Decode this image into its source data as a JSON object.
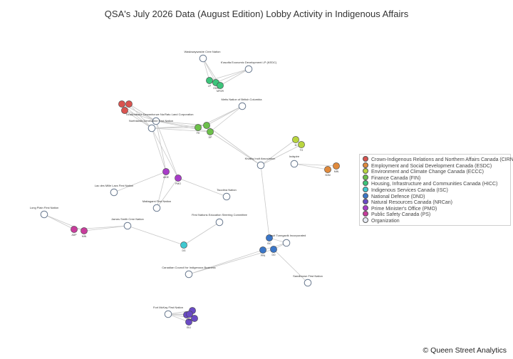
{
  "title": "QSA's July 2026 Data (August Edition) Lobby Activity in Indigenous Affairs",
  "credit": "© Queen Street Analytics",
  "legend": [
    {
      "key": "CIRNAC",
      "label": "Crown-Indigenous Relations and Northern Affairs Canada (CIRNAC)",
      "color": "#d9534f"
    },
    {
      "key": "ESDC",
      "label": "Employment and Social Development Canada (ESDC)",
      "color": "#e08a3c"
    },
    {
      "key": "ECCC",
      "label": "Environment and Climate Change Canada (ECCC)",
      "color": "#b9d53f"
    },
    {
      "key": "FIN",
      "label": "Finance Canada (FIN)",
      "color": "#6cc04a"
    },
    {
      "key": "HICC",
      "label": "Housing, Infrastructure and Communities Canada (HICC)",
      "color": "#3cc47a"
    },
    {
      "key": "ISC",
      "label": "Indigenous Services Canada (ISC)",
      "color": "#40c8d0"
    },
    {
      "key": "DND",
      "label": "National Defence (DND)",
      "color": "#3a76c8"
    },
    {
      "key": "NRCan",
      "label": "Natural Resources Canada (NRCan)",
      "color": "#6a4bc4"
    },
    {
      "key": "PMO",
      "label": "Prime Minister's Office (PMO)",
      "color": "#a83cc8"
    },
    {
      "key": "PS",
      "label": "Public Safety Canada (PS)",
      "color": "#c83c9c"
    },
    {
      "key": "Organization",
      "label": "Organization",
      "color": "#e8ecf5"
    }
  ],
  "nodes": [
    {
      "id": "o1",
      "label": "Waskwaywashe Cree Nation",
      "group": "Organization"
    },
    {
      "id": "o2",
      "label": "K'asotfa Economic Development LP (KEDC)",
      "group": "Organization"
    },
    {
      "id": "o3",
      "label": "Metis Nation of British Columbia",
      "group": "Organization"
    },
    {
      "id": "o4",
      "label": "Ta'aAbokoha Dewanha:we Na:Ratu Land Corporation",
      "group": "Organization"
    },
    {
      "id": "o5",
      "label": "Northlands Denesuline First Nation",
      "group": "Organization"
    },
    {
      "id": "o6",
      "label": "Kivalliq Inuit Association",
      "group": "Organization"
    },
    {
      "id": "o7",
      "label": "Indspire",
      "group": "Organization"
    },
    {
      "id": "o8",
      "label": "Lac des Mille Lacs First Nation",
      "group": "Organization"
    },
    {
      "id": "o9",
      "label": "Tsuutina Nation",
      "group": "Organization"
    },
    {
      "id": "o10",
      "label": "Mattagami First Nation",
      "group": "Organization"
    },
    {
      "id": "o11",
      "label": "First Nations Education Steering Committee",
      "group": "Organization"
    },
    {
      "id": "o12",
      "label": "Long Plain First Nation",
      "group": "Organization"
    },
    {
      "id": "o13",
      "label": "James Smith Cree Nation",
      "group": "Organization"
    },
    {
      "id": "o14",
      "label": "Inuit Tunngavik Incorporated",
      "group": "Organization"
    },
    {
      "id": "o15",
      "label": "Canadian Council for Indigenous Business",
      "group": "Organization"
    },
    {
      "id": "o16",
      "label": "Sandbrown First Nation",
      "group": "Organization"
    },
    {
      "id": "o17",
      "label": "Fort McKay First Nation",
      "group": "Organization"
    },
    {
      "id": "h1",
      "label": "LP",
      "group": "HICC"
    },
    {
      "id": "h2",
      "label": "EDS",
      "group": "HICC"
    },
    {
      "id": "h3",
      "label": "MFOR",
      "group": "HICC"
    },
    {
      "id": "c1",
      "label": "",
      "group": "CIRNAC"
    },
    {
      "id": "c2",
      "label": "",
      "group": "CIRNAC"
    },
    {
      "id": "c3",
      "label": "",
      "group": "CIRNAC"
    },
    {
      "id": "f1",
      "label": "FH",
      "group": "FIN"
    },
    {
      "id": "f2",
      "label": "",
      "group": "FIN"
    },
    {
      "id": "f3",
      "label": "DP",
      "group": "FIN"
    },
    {
      "id": "e1",
      "label": "M",
      "group": "ECCC"
    },
    {
      "id": "e2",
      "label": "TO",
      "group": "ECCC"
    },
    {
      "id": "s1",
      "label": "SDM",
      "group": "ESDC"
    },
    {
      "id": "s2",
      "label": "MIN",
      "group": "ESDC"
    },
    {
      "id": "p1",
      "label": "AIDE",
      "group": "PMO"
    },
    {
      "id": "p2",
      "label": "PMO",
      "group": "PMO"
    },
    {
      "id": "ps1",
      "label": "ADP",
      "group": "PS"
    },
    {
      "id": "ps2",
      "label": "MIN",
      "group": "PS"
    },
    {
      "id": "i1",
      "label": "DG",
      "group": "ISC"
    },
    {
      "id": "d1",
      "label": "ISC",
      "group": "DND"
    },
    {
      "id": "d2",
      "label": "PPA",
      "group": "DND"
    },
    {
      "id": "d3",
      "label": "DO",
      "group": "DND"
    },
    {
      "id": "n1",
      "label": "",
      "group": "NRCan"
    },
    {
      "id": "n2",
      "label": "",
      "group": "NRCan"
    },
    {
      "id": "n3",
      "label": "",
      "group": "NRCan"
    },
    {
      "id": "n4",
      "label": "EIU",
      "group": "NRCan"
    },
    {
      "id": "n5",
      "label": "PU",
      "group": "NRCan"
    }
  ],
  "edges": [
    [
      "o1",
      "h1"
    ],
    [
      "o1",
      "h2"
    ],
    [
      "o1",
      "h3"
    ],
    [
      "o2",
      "h1"
    ],
    [
      "o2",
      "h2"
    ],
    [
      "o2",
      "h3"
    ],
    [
      "o3",
      "f1"
    ],
    [
      "o3",
      "f2"
    ],
    [
      "o3",
      "f3"
    ],
    [
      "o4",
      "f1"
    ],
    [
      "o4",
      "f2"
    ],
    [
      "o4",
      "f3"
    ],
    [
      "o5",
      "f1"
    ],
    [
      "o5",
      "f2"
    ],
    [
      "o5",
      "f3"
    ],
    [
      "c1",
      "o4"
    ],
    [
      "c2",
      "o4"
    ],
    [
      "c3",
      "o4"
    ],
    [
      "c1",
      "o5"
    ],
    [
      "c2",
      "o5"
    ],
    [
      "c3",
      "o5"
    ],
    [
      "o6",
      "f2"
    ],
    [
      "o6",
      "f3"
    ],
    [
      "o6",
      "e1"
    ],
    [
      "o6",
      "e2"
    ],
    [
      "o6",
      "d1"
    ],
    [
      "o7",
      "s1"
    ],
    [
      "o7",
      "s2"
    ],
    [
      "o4",
      "p1"
    ],
    [
      "o5",
      "p1"
    ],
    [
      "o4",
      "p2"
    ],
    [
      "o5",
      "p2"
    ],
    [
      "o8",
      "p1"
    ],
    [
      "o9",
      "p2"
    ],
    [
      "o10",
      "p1"
    ],
    [
      "o10",
      "p2"
    ],
    [
      "o11",
      "i1"
    ],
    [
      "o13",
      "i1"
    ],
    [
      "o12",
      "ps1"
    ],
    [
      "o12",
      "ps2"
    ],
    [
      "o13",
      "ps1"
    ],
    [
      "o13",
      "ps2"
    ],
    [
      "o14",
      "d1"
    ],
    [
      "o14",
      "d2"
    ],
    [
      "o14",
      "d3"
    ],
    [
      "o15",
      "d2"
    ],
    [
      "o15",
      "d3"
    ],
    [
      "o16",
      "d3"
    ],
    [
      "o17",
      "n1"
    ],
    [
      "o17",
      "n2"
    ],
    [
      "o17",
      "n3"
    ],
    [
      "o17",
      "n4"
    ],
    [
      "o17",
      "n5"
    ]
  ]
}
